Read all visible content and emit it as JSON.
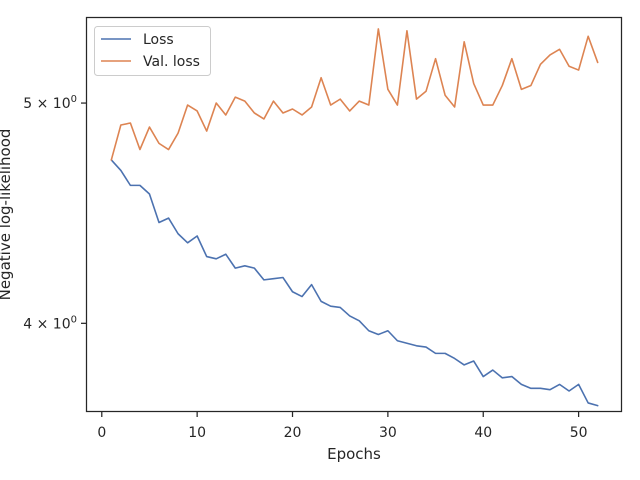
{
  "chart_data": {
    "type": "line",
    "xlabel": "Epochs",
    "ylabel": "Negative log-likelihood",
    "xlim": [
      -1.55,
      54.55
    ],
    "ylim": [
      3.66,
      5.45
    ],
    "yscale": "log",
    "xticks": [
      0,
      10,
      20,
      30,
      40,
      50
    ],
    "xtick_labels": [
      "0",
      "10",
      "20",
      "30",
      "40",
      "50"
    ],
    "yticks": [
      4.0,
      5.0
    ],
    "ytick_labels": [
      {
        "base": "4 × 10",
        "exp": "0"
      },
      {
        "base": "5 × 10",
        "exp": "0"
      }
    ],
    "grid": false,
    "legend": {
      "position": "top-left"
    },
    "x": [
      1,
      2,
      3,
      4,
      5,
      6,
      7,
      8,
      9,
      10,
      11,
      12,
      13,
      14,
      15,
      16,
      17,
      18,
      19,
      20,
      21,
      22,
      23,
      24,
      25,
      26,
      27,
      28,
      29,
      30,
      31,
      32,
      33,
      34,
      35,
      36,
      37,
      38,
      39,
      40,
      41,
      42,
      43,
      44,
      45,
      46,
      47,
      48,
      49,
      50,
      51,
      52
    ],
    "series": [
      {
        "name": "Loss",
        "color": "#4c72b0",
        "values": [
          4.72,
          4.67,
          4.6,
          4.6,
          4.56,
          4.43,
          4.45,
          4.38,
          4.34,
          4.37,
          4.28,
          4.27,
          4.29,
          4.23,
          4.24,
          4.23,
          4.18,
          4.185,
          4.19,
          4.13,
          4.11,
          4.16,
          4.09,
          4.07,
          4.065,
          4.03,
          4.01,
          3.97,
          3.955,
          3.97,
          3.93,
          3.92,
          3.91,
          3.905,
          3.88,
          3.88,
          3.86,
          3.835,
          3.85,
          3.79,
          3.815,
          3.785,
          3.79,
          3.76,
          3.745,
          3.745,
          3.74,
          3.76,
          3.735,
          3.76,
          3.69,
          3.68
        ]
      },
      {
        "name": "Val. loss",
        "color": "#dd8452",
        "values": [
          4.72,
          4.89,
          4.9,
          4.77,
          4.88,
          4.8,
          4.77,
          4.85,
          4.99,
          4.96,
          4.86,
          5.0,
          4.94,
          5.03,
          5.01,
          4.95,
          4.92,
          5.01,
          4.95,
          4.97,
          4.94,
          4.98,
          5.13,
          4.99,
          5.02,
          4.96,
          5.01,
          4.99,
          5.39,
          5.07,
          4.99,
          5.38,
          5.02,
          5.06,
          5.23,
          5.04,
          4.98,
          5.32,
          5.1,
          4.99,
          4.99,
          5.09,
          5.23,
          5.07,
          5.09,
          5.2,
          5.25,
          5.28,
          5.19,
          5.17,
          5.35,
          5.21
        ]
      }
    ]
  }
}
